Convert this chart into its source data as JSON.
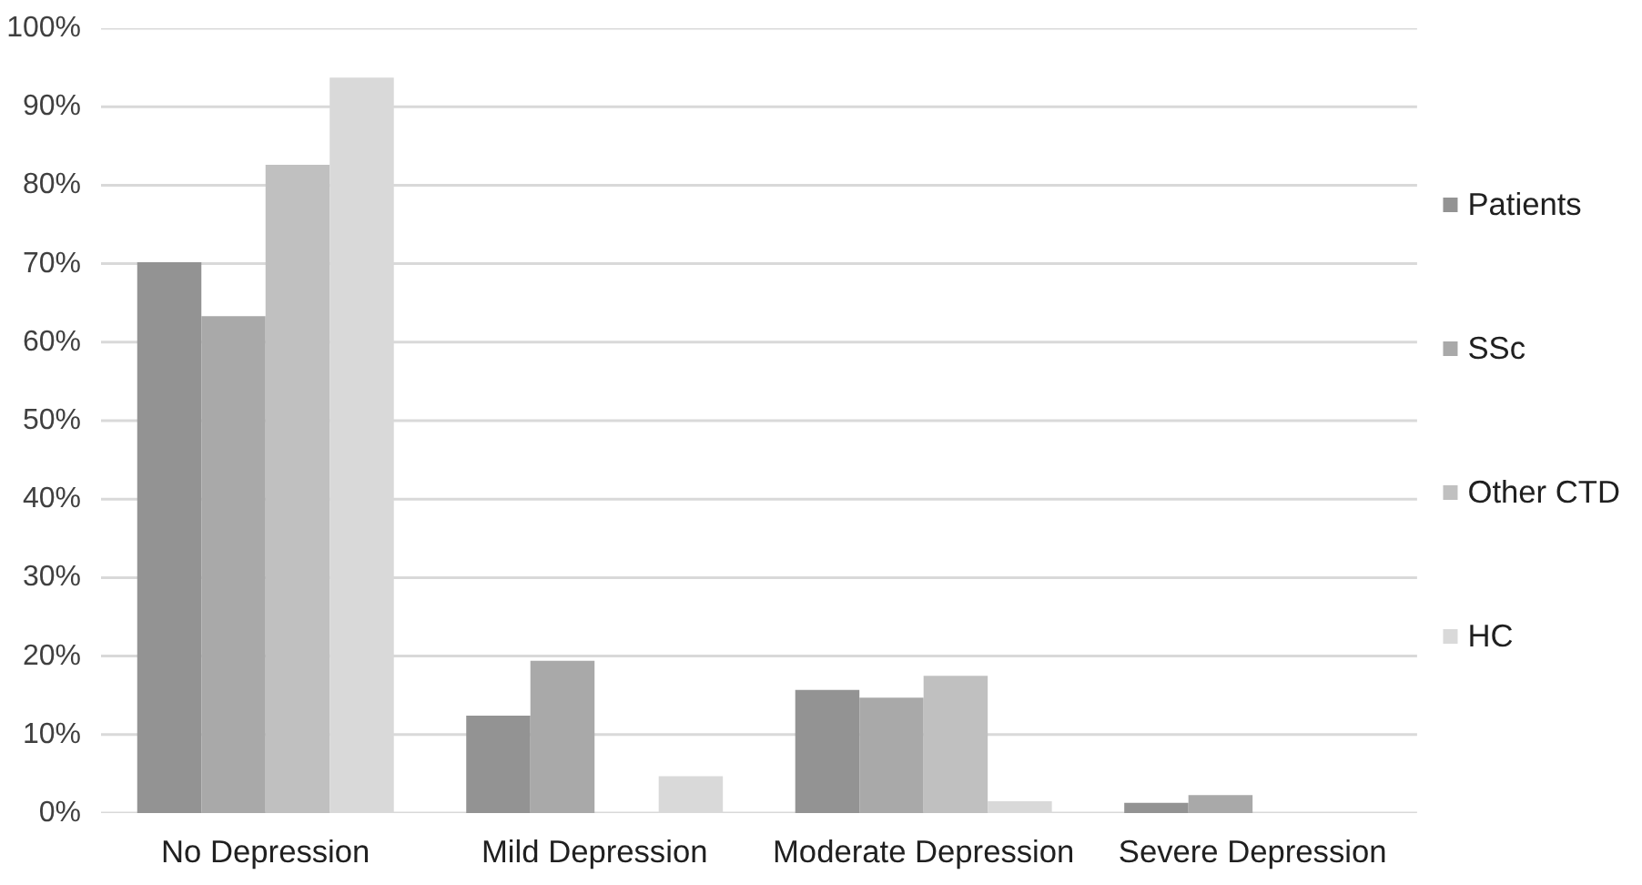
{
  "chart_data": {
    "type": "bar",
    "categories": [
      "No Depression",
      "Mild Depression",
      "Moderate Depression",
      "Severe Depression"
    ],
    "series": [
      {
        "name": "Patients",
        "color": "#939393",
        "values": [
          70.2,
          12.4,
          15.7,
          1.3
        ]
      },
      {
        "name": "SSc",
        "color": "#a9a9a9",
        "values": [
          63.3,
          19.4,
          14.7,
          2.3
        ]
      },
      {
        "name": "Other CTD",
        "color": "#c0c0c0",
        "values": [
          82.6,
          0,
          17.5,
          0
        ]
      },
      {
        "name": "HC",
        "color": "#d9d9d9",
        "values": [
          93.7,
          4.7,
          1.5,
          0
        ]
      }
    ],
    "ylim": [
      0,
      100
    ],
    "yticks": [
      {
        "value": 0,
        "label": "0%"
      },
      {
        "value": 10,
        "label": "10%"
      },
      {
        "value": 20,
        "label": "20%"
      },
      {
        "value": 30,
        "label": "30%"
      },
      {
        "value": 40,
        "label": "40%"
      },
      {
        "value": 50,
        "label": "50%"
      },
      {
        "value": 60,
        "label": "60%"
      },
      {
        "value": 70,
        "label": "70%"
      },
      {
        "value": 80,
        "label": "80%"
      },
      {
        "value": 90,
        "label": "90%"
      },
      {
        "value": 100,
        "label": "100%"
      }
    ],
    "grid": "y",
    "legend": "right"
  }
}
